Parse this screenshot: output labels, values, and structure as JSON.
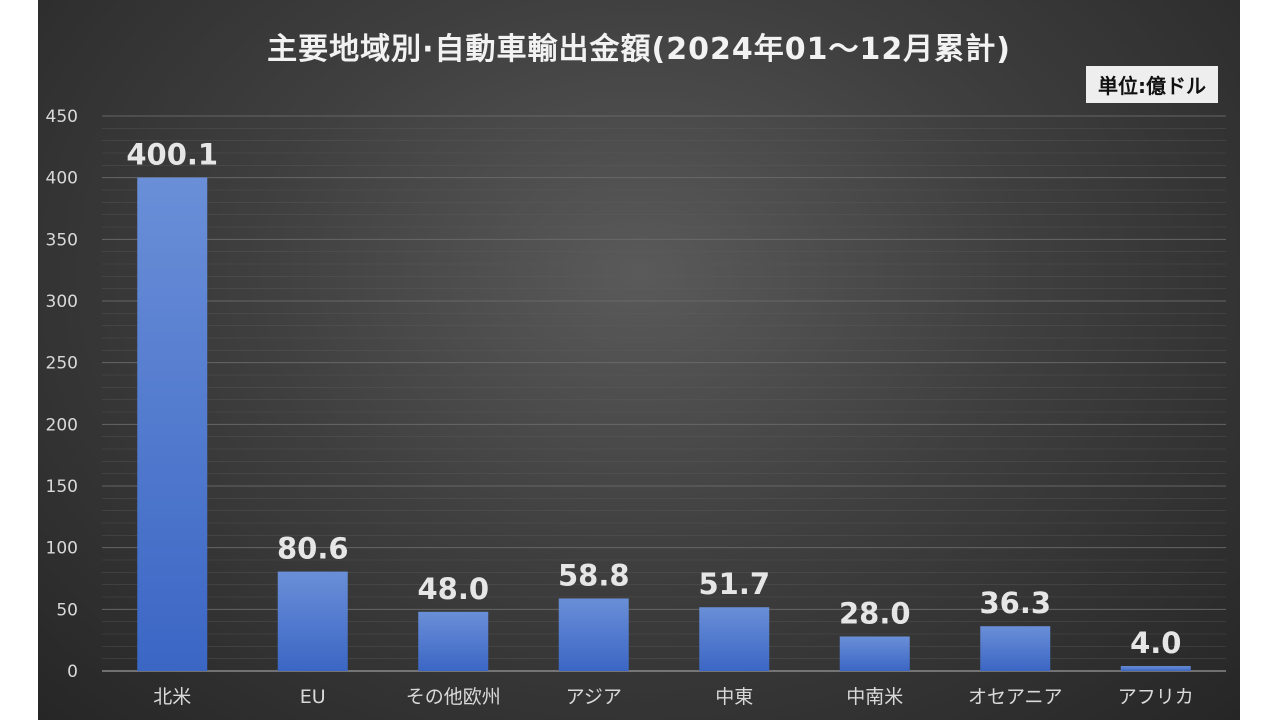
{
  "chart_data": {
    "type": "bar",
    "title": "主要地域別·自動車輸出金額(2024年01〜12月累計)",
    "unit_label": "単位:億ドル",
    "categories": [
      "北米",
      "EU",
      "その他欧州",
      "アジア",
      "中東",
      "中南米",
      "オセアニア",
      "アフリカ"
    ],
    "values": [
      400.1,
      80.6,
      48.0,
      58.8,
      51.7,
      28.0,
      36.3,
      4.0
    ],
    "value_labels": [
      "400.1",
      "80.6",
      "48.0",
      "58.8",
      "51.7",
      "28.0",
      "36.3",
      "4.0"
    ],
    "yticks": [
      "0",
      "50",
      "100",
      "150",
      "200",
      "250",
      "300",
      "350",
      "400",
      "450"
    ],
    "ylim": [
      0,
      450
    ],
    "grid": true,
    "legend": "none",
    "xlabel": "",
    "ylabel": "",
    "colors": {
      "bar_top": "#6a8fd8",
      "bar_bottom": "#3b66c4",
      "grid": "#5e5e5e",
      "text": "#d9d9d9"
    }
  }
}
